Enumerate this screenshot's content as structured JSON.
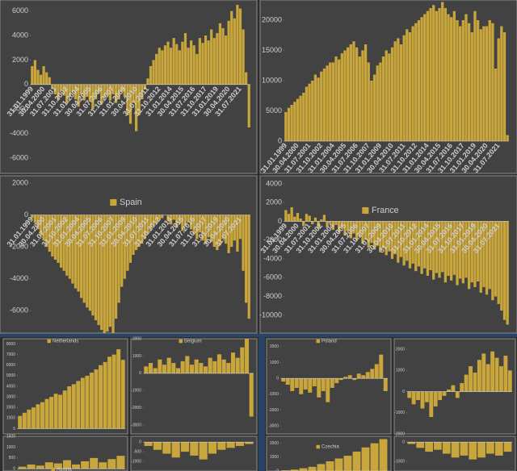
{
  "chart_data": [
    {
      "type": "bar",
      "color": "#c9a63c",
      "categories": [
        "31.01.1999",
        null,
        null,
        null,
        "30.04.2000",
        null,
        null,
        null,
        "31.07.2001",
        null,
        null,
        null,
        "31.10.2002",
        null,
        null,
        null,
        "31.01.2004",
        null,
        null,
        null,
        "30.04.2005",
        null,
        null,
        null,
        "31.07.2006",
        null,
        null,
        null,
        "31.10.2007",
        null,
        null,
        null,
        "31.01.2009",
        null,
        null,
        null,
        "30.04.2010",
        null,
        null,
        null,
        "31.07.2011",
        null,
        null,
        null,
        "31.10.2012",
        null,
        null,
        null,
        "31.01.2014",
        null,
        null,
        null,
        "30.04.2015",
        null,
        null,
        null,
        "31.07.2016",
        null,
        null,
        null,
        "31.10.2017",
        null,
        null,
        null,
        "31.01.2019",
        null,
        null,
        null,
        "30.04.2020",
        null,
        null,
        null,
        "31.07.2021",
        null,
        null,
        null
      ],
      "values": [
        1500,
        2000,
        1200,
        800,
        1500,
        1000,
        600,
        -300,
        -800,
        -1200,
        -500,
        -900,
        -1500,
        -1000,
        -600,
        -1200,
        -1800,
        -800,
        -1300,
        -1000,
        -1400,
        -2000,
        -1200,
        -700,
        -1600,
        -1100,
        -900,
        -1300,
        -800,
        -1500,
        -1200,
        -600,
        -1000,
        -2500,
        -3200,
        -1500,
        -3800,
        -2500,
        -1200,
        -400,
        500,
        1500,
        2000,
        2500,
        3000,
        2800,
        3200,
        3500,
        3000,
        3800,
        3300,
        2800,
        3500,
        4200,
        3000,
        3600,
        3200,
        2500,
        3800,
        3400,
        4000,
        3600,
        4500,
        3800,
        4200,
        5000,
        4600,
        4000,
        5200,
        6000,
        5400,
        6500,
        6200,
        4500,
        1000,
        -3500
      ],
      "ylim": [
        -7250,
        6900
      ],
      "yticks": [
        -6000,
        -4000,
        -2000,
        0,
        2000,
        4000,
        6000
      ]
    },
    {
      "type": "bar",
      "color": "#c9a63c",
      "categories": [
        "31.01.1999",
        null,
        null,
        null,
        "30.04.2000",
        null,
        null,
        null,
        "31.07.2001",
        null,
        null,
        null,
        "31.10.2002",
        null,
        null,
        null,
        "31.01.2004",
        null,
        null,
        null,
        "30.04.2005",
        null,
        null,
        null,
        "31.07.2006",
        null,
        null,
        null,
        "31.10.2007",
        null,
        null,
        null,
        "31.01.2009",
        null,
        null,
        null,
        "30.04.2010",
        null,
        null,
        null,
        "31.07.2011",
        null,
        null,
        null,
        "31.10.2012",
        null,
        null,
        null,
        "31.01.2014",
        null,
        null,
        null,
        "30.04.2015",
        null,
        null,
        null,
        "31.07.2016",
        null,
        null,
        null,
        "31.10.2017",
        null,
        null,
        null,
        "31.01.2019",
        null,
        null,
        null,
        "30.04.2020",
        null,
        null,
        null,
        "31.07.2021",
        null,
        null,
        null
      ],
      "values": [
        4800,
        5500,
        6000,
        6500,
        7000,
        7500,
        8000,
        9000,
        9500,
        10000,
        11000,
        10500,
        11500,
        12000,
        12500,
        13000,
        13000,
        14000,
        13500,
        14500,
        15000,
        15500,
        16000,
        16500,
        15500,
        14000,
        15000,
        16000,
        13000,
        10000,
        11000,
        12500,
        13000,
        14000,
        15000,
        14500,
        15500,
        16500,
        17000,
        16000,
        17500,
        18500,
        18000,
        19000,
        19500,
        20000,
        20500,
        21000,
        21500,
        22000,
        22500,
        21500,
        22000,
        23000,
        22000,
        21000,
        20500,
        21500,
        20000,
        19000,
        20000,
        21000,
        19500,
        18000,
        21500,
        20000,
        18500,
        19000,
        19000,
        20000,
        19500,
        12000,
        17000,
        19000,
        18000,
        1000
      ],
      "ylim": [
        -5333,
        23333
      ],
      "yticks": [
        0,
        5000,
        10000,
        15000,
        20000
      ]
    },
    {
      "type": "bar",
      "title": "Spain",
      "color": "#c9a63c",
      "categories": [
        "31.01.1999",
        null,
        null,
        null,
        "30.04.2000",
        null,
        null,
        null,
        "31.07.2001",
        null,
        null,
        null,
        "31.10.2002",
        null,
        null,
        null,
        "31.01.2004",
        null,
        null,
        null,
        "30.04.2005",
        null,
        null,
        null,
        "31.07.2006",
        null,
        null,
        null,
        "31.10.2007",
        null,
        null,
        null,
        "31.01.2009",
        null,
        null,
        null,
        "30.04.2010",
        null,
        null,
        null,
        "31.07.2011",
        null,
        null,
        null,
        "31.10.2012",
        null,
        null,
        null,
        "31.01.2014",
        null,
        null,
        null,
        "30.04.2015",
        null,
        null,
        null,
        "31.07.2016",
        null,
        null,
        null,
        "31.10.2017",
        null,
        null,
        null,
        "31.01.2019",
        null,
        null,
        null,
        "30.04.2020",
        null,
        null,
        null,
        "31.07.2021",
        null,
        null,
        null
      ],
      "values": [
        -200,
        -500,
        -900,
        -1300,
        -1600,
        -2000,
        -2300,
        -2600,
        -2800,
        -3000,
        -3300,
        -3500,
        -3800,
        -4000,
        -4300,
        -4600,
        -4800,
        -5200,
        -5500,
        -5800,
        -6000,
        -6300,
        -6600,
        -6900,
        -7200,
        -7400,
        -7300,
        -7000,
        -7400,
        -6500,
        -5500,
        -4500,
        -4000,
        -3500,
        -3000,
        -2500,
        -2200,
        -2000,
        -1800,
        -1500,
        -1200,
        -900,
        -700,
        -500,
        -300,
        -200,
        0,
        -400,
        -600,
        -300,
        -800,
        -500,
        -1000,
        -700,
        -400,
        -900,
        -1200,
        -1500,
        -1100,
        -1600,
        -1800,
        -1400,
        -1700,
        -2000,
        -2200,
        -1900,
        -1500,
        -1800,
        -2400,
        -2000,
        -1600,
        -2300,
        -1500,
        -3500,
        -5500,
        -6500
      ],
      "ylim": [
        -7400,
        2450
      ],
      "yticks": [
        -6000,
        -4000,
        -2000,
        0,
        2000
      ]
    },
    {
      "type": "bar",
      "title": "France",
      "color": "#c9a63c",
      "categories": [
        "31.01.1999",
        null,
        null,
        null,
        "30.04.2000",
        null,
        null,
        null,
        "31.07.2001",
        null,
        null,
        null,
        "31.10.2002",
        null,
        null,
        null,
        "31.01.2004",
        null,
        null,
        null,
        "30.04.2005",
        null,
        null,
        null,
        "31.07.2006",
        null,
        null,
        null,
        "31.10.2007",
        null,
        null,
        null,
        "31.01.2009",
        null,
        null,
        null,
        "30.04.2010",
        null,
        null,
        null,
        "31.07.2011",
        null,
        null,
        null,
        "31.10.2012",
        null,
        null,
        null,
        "31.01.2014",
        null,
        null,
        null,
        "30.04.2015",
        null,
        null,
        null,
        "31.07.2016",
        null,
        null,
        null,
        "31.10.2017",
        null,
        null,
        null,
        "31.01.2019",
        null,
        null,
        null,
        "30.04.2020",
        null,
        null,
        null,
        "31.07.2021",
        null,
        null,
        null
      ],
      "values": [
        1200,
        800,
        1500,
        500,
        900,
        300,
        -500,
        800,
        600,
        -300,
        400,
        -800,
        200,
        700,
        -600,
        -200,
        -900,
        -400,
        -1200,
        -700,
        -1500,
        -1000,
        -1800,
        -1300,
        -2000,
        -1600,
        -2400,
        -1900,
        -2800,
        -2300,
        -3000,
        -2600,
        -3300,
        -2900,
        -3600,
        -3200,
        -4000,
        -3500,
        -4400,
        -3800,
        -4700,
        -4200,
        -5000,
        -4500,
        -5300,
        -4800,
        -5600,
        -5000,
        -5800,
        -5200,
        -6200,
        -5500,
        -6000,
        -5400,
        -6500,
        -5800,
        -6300,
        -5700,
        -6800,
        -6100,
        -6600,
        -6000,
        -7200,
        -6500,
        -7000,
        -6400,
        -7600,
        -7000,
        -7800,
        -7200,
        -8400,
        -8000,
        -8800,
        -9500,
        -10500,
        -11000
      ],
      "ylim": [
        -11900,
        4850
      ],
      "yticks": [
        -10000,
        -8000,
        -6000,
        -4000,
        -2000,
        0,
        2000,
        4000
      ]
    },
    {
      "type": "bar",
      "title": "Netherlands",
      "color": "#c9a63c",
      "values": [
        1200,
        1500,
        1800,
        2000,
        2300,
        2500,
        2800,
        3000,
        3300,
        3200,
        3600,
        4000,
        4200,
        4500,
        4800,
        5000,
        5300,
        5600,
        6000,
        6300,
        6800,
        7000,
        7500,
        6500
      ],
      "ylim": [
        -500,
        8500
      ],
      "yticks": [
        0,
        1000,
        2000,
        3000,
        4000,
        5000,
        6000,
        7000,
        8000
      ]
    },
    {
      "type": "bar",
      "title": "Belgium",
      "color": "#c9a63c",
      "values": [
        400,
        600,
        300,
        800,
        500,
        900,
        600,
        300,
        700,
        1000,
        500,
        800,
        600,
        400,
        900,
        700,
        1100,
        800,
        600,
        1200,
        900,
        1500,
        2000,
        -2500
      ],
      "ylim": [
        -3500,
        2000
      ],
      "yticks": [
        -3000,
        -2000,
        -1000,
        0,
        1000,
        2000
      ]
    },
    {
      "type": "bar",
      "title": "Poland",
      "color": "#c9a63c",
      "values": [
        -200,
        -400,
        -800,
        -600,
        -1000,
        -700,
        -900,
        -500,
        -1200,
        -800,
        -1500,
        -600,
        -300,
        -100,
        100,
        200,
        -100,
        300,
        200,
        400,
        600,
        900,
        1500,
        -800
      ],
      "ylim": [
        -3500,
        2500
      ],
      "yticks": [
        -3000,
        -2000,
        -1000,
        0,
        1000,
        2000
      ]
    },
    {
      "type": "bar",
      "color": "#c9a63c",
      "values": [
        -300,
        -600,
        -400,
        -800,
        -500,
        -1200,
        -700,
        -400,
        -200,
        100,
        300,
        -300,
        400,
        800,
        1200,
        900,
        1500,
        1800,
        1300,
        1900,
        1600,
        1200,
        1700,
        1000
      ],
      "ylim": [
        -2000,
        2500
      ],
      "yticks": [
        -2000,
        -1000,
        0,
        1000,
        2000
      ]
    },
    {
      "type": "bar",
      "title": "Austria",
      "color": "#c9a63c",
      "values": [
        100,
        200,
        150,
        300,
        250,
        400,
        200,
        350,
        500,
        300,
        450,
        600
      ],
      "ylim": [
        -100,
        1500
      ],
      "yticks": [
        0,
        500,
        1000,
        1500
      ]
    },
    {
      "type": "bar",
      "color": "#c9a63c",
      "values": [
        -200,
        -400,
        -600,
        -800,
        -500,
        -700,
        -900,
        -600,
        -400,
        -300,
        -200,
        -100
      ],
      "ylim": [
        -1500,
        300
      ],
      "yticks": [
        -1000,
        -500,
        0
      ]
    },
    {
      "type": "bar",
      "title": "Czechia",
      "color": "#c9a63c",
      "values": [
        50,
        100,
        200,
        300,
        500,
        700,
        900,
        1100,
        1400,
        1700,
        2000,
        2300
      ],
      "ylim": [
        0,
        2500
      ],
      "yticks": [
        0,
        1000,
        2000
      ]
    },
    {
      "type": "bar",
      "color": "#c9a63c",
      "values": [
        -100,
        -300,
        -500,
        -400,
        -600,
        -800,
        -700,
        -900,
        -800,
        -600,
        -700,
        -500
      ],
      "ylim": [
        -1500,
        300
      ],
      "yticks": [
        -1000,
        0
      ]
    }
  ]
}
